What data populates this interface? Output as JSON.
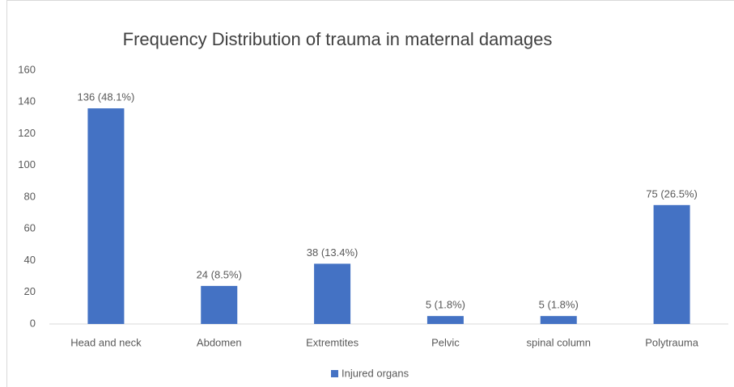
{
  "chart_data": {
    "type": "bar",
    "title": "Frequency Distribution of trauma in maternal damages",
    "categories": [
      "Head and neck",
      "Abdomen",
      "Extremtites",
      "Pelvic",
      "spinal column",
      "Polytrauma"
    ],
    "series": [
      {
        "name": "Injured organs",
        "color": "#4472c4",
        "values": [
          136,
          24,
          38,
          5,
          5,
          75
        ],
        "value_labels": [
          "136 (48.1%)",
          "24 (8.5%)",
          "38 (13.4%)",
          "5 (1.8%)",
          "5 (1.8%)",
          "75 (26.5%)"
        ]
      }
    ],
    "ylim": [
      0,
      160
    ],
    "yticks": [
      0,
      20,
      40,
      60,
      80,
      100,
      120,
      140,
      160
    ],
    "grid": false,
    "legend": "bottom"
  }
}
